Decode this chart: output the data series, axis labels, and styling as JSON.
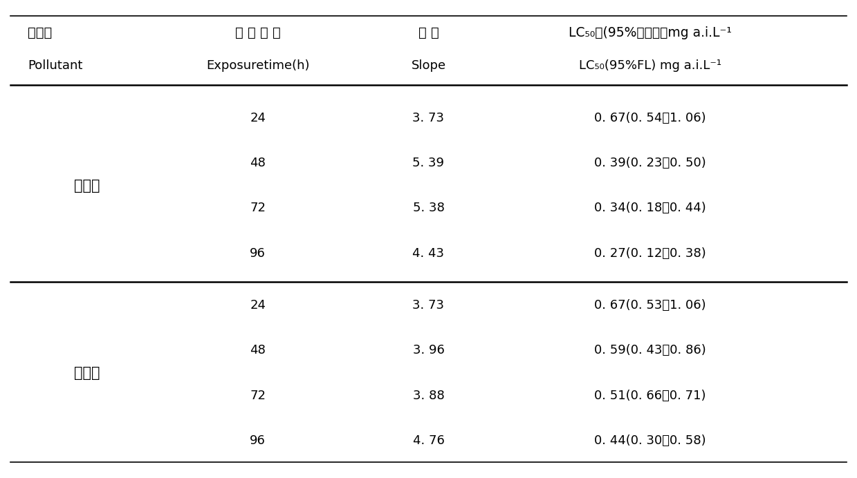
{
  "col1_header_zh": "污染物",
  "col1_header_en": "Pollutant",
  "col2_header_zh": "暴 露 时 间",
  "col2_header_en": "Exposuretime(h)",
  "col3_header_zh": "斜 率",
  "col3_header_en": "Slope",
  "col4_header_zh": "LC₅₀值(95%置信限）mg a.i.L⁻¹",
  "col4_header_en": "LC₅₀(95%FL) mg a.i.L⁻¹",
  "group1_name": "毒死蜱",
  "group2_name": "丁草胺",
  "rows": [
    {
      "group": "毒死蜱",
      "time": "24",
      "slope": "3. 73",
      "lc50": "0. 67(0. 54－1. 06)"
    },
    {
      "group": "毒死蜱",
      "time": "48",
      "slope": "5. 39",
      "lc50": "0. 39(0. 23－0. 50)"
    },
    {
      "group": "毒死蜱",
      "time": "72",
      "slope": "5. 38",
      "lc50": "0. 34(0. 18－0. 44)"
    },
    {
      "group": "毒死蜱",
      "time": "96",
      "slope": "4. 43",
      "lc50": "0. 27(0. 12－0. 38)"
    },
    {
      "group": "丁草胺",
      "time": "24",
      "slope": "3. 73",
      "lc50": "0. 67(0. 53－1. 06)"
    },
    {
      "group": "丁草胺",
      "time": "48",
      "slope": "3. 96",
      "lc50": "0. 59(0. 43－0. 86)"
    },
    {
      "group": "丁草胺",
      "time": "72",
      "slope": "3. 88",
      "lc50": "0. 51(0. 66－0. 71)"
    },
    {
      "group": "丁草胺",
      "time": "96",
      "slope": "4. 76",
      "lc50": "0. 44(0. 30－0. 58)"
    }
  ],
  "bg_color": "#ffffff",
  "text_color": "#000000",
  "line_color": "#000000",
  "font_size_header": 13,
  "font_size_data": 13,
  "font_size_zh": 14
}
